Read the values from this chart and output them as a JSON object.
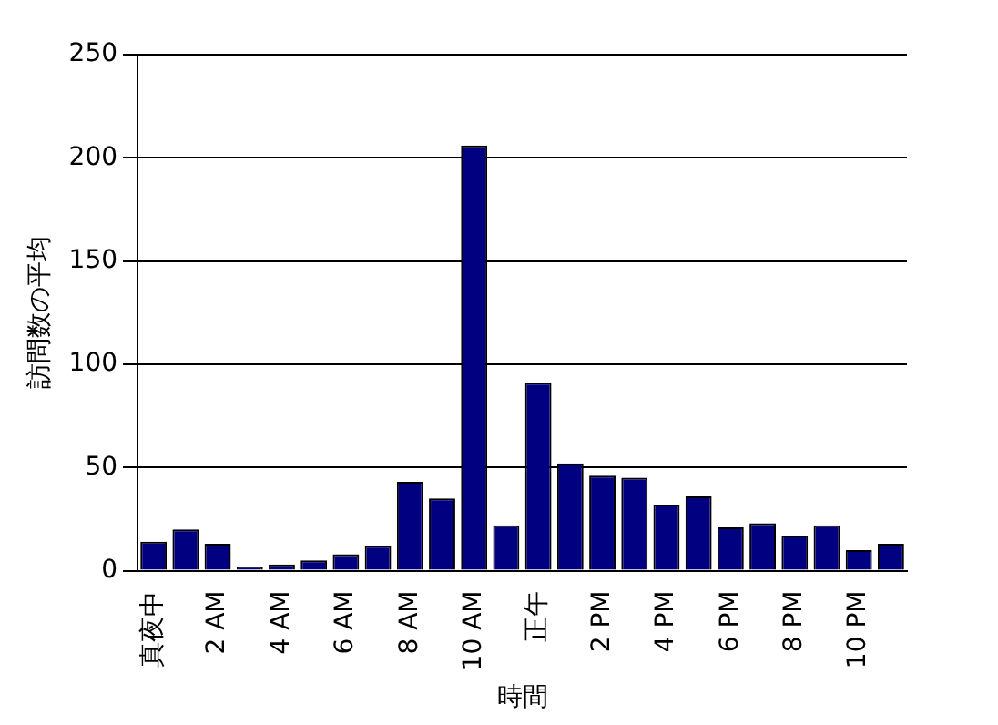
{
  "chart_data": {
    "type": "bar",
    "xlabel": "時間",
    "ylabel": "訪問数の平均",
    "categories": [
      "真夜中",
      null,
      "2 AM",
      null,
      "4 AM",
      null,
      "6 AM",
      null,
      "8 AM",
      null,
      "10 AM",
      null,
      "正午",
      null,
      "2 PM",
      null,
      "4 PM",
      null,
      "6 PM",
      null,
      "8 PM",
      null,
      "10 PM",
      null
    ],
    "values": [
      14,
      20,
      13,
      2,
      3,
      5,
      8,
      12,
      43,
      35,
      206,
      22,
      91,
      52,
      46,
      45,
      32,
      36,
      21,
      23,
      17,
      22,
      10,
      13
    ],
    "color": "#000080",
    "ylim": [
      0,
      250
    ],
    "yticks": [
      0,
      50,
      100,
      150,
      200,
      250
    ],
    "grid": "y",
    "legend": false
  }
}
